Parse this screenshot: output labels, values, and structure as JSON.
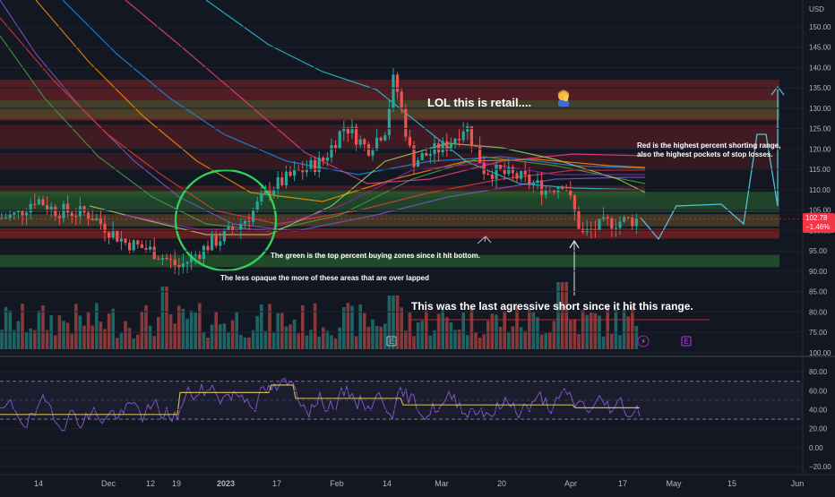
{
  "currency_label": "USD",
  "price_axis": {
    "labels": [
      "150.00",
      "145.00",
      "140.00",
      "135.00",
      "130.00",
      "125.00",
      "120.00",
      "115.00",
      "110.00",
      "105.00",
      "100.00",
      "95.00",
      "90.00",
      "85.00",
      "80.00",
      "75.00"
    ],
    "values": [
      150,
      145,
      140,
      135,
      130,
      125,
      120,
      115,
      110,
      105,
      100,
      95,
      90,
      85,
      80,
      75
    ],
    "current_price": "102.78",
    "current_change": "−1.46%"
  },
  "rsi_axis": {
    "labels": [
      "100.00",
      "80.00",
      "60.00",
      "40.00",
      "20.00",
      "0.00",
      "−20.00"
    ],
    "values": [
      100,
      80,
      60,
      40,
      20,
      0,
      -20
    ],
    "upper_band": 70,
    "lower_band": 30
  },
  "time_axis": {
    "labels": [
      "14",
      "Dec",
      "12",
      "19",
      "2023",
      "17",
      "Feb",
      "14",
      "Mar",
      "20",
      "Apr",
      "17",
      "May",
      "15",
      "Jun"
    ]
  },
  "annotations": {
    "retail": "LOL this is retail....",
    "red_zone_line1": "Red is the highest percent shorting range,",
    "red_zone_line2": "also the highest pockets of stop losses.",
    "green_zone": "The green is the top percent buying zones since it hit bottom.",
    "opacity_note": "The less opaque the more of these areas that are over lapped",
    "last_short": "This was the last agressive short since it hit this range."
  },
  "event_markers": {
    "earnings_1": "E",
    "earnings_2": "E",
    "dividend": "⚡"
  },
  "colors": {
    "background": "#131722",
    "up": "#26a69a",
    "down": "#ef5350",
    "rsi_line": "#7e57c2",
    "rsi_ma": "#e6d35a",
    "price_tag": "#f23645",
    "projection": "#4fc3d9",
    "circle": "#30d158"
  }
}
